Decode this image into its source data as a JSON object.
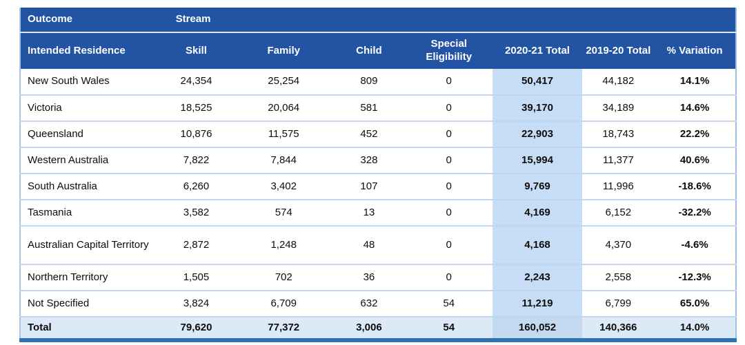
{
  "table": {
    "title_semantics": "Migration Program outcome by stream and intended residence",
    "header_top": {
      "outcome_label": "Outcome",
      "stream_label": "Stream"
    },
    "columns": {
      "residence": "Intended Residence",
      "skill": "Skill",
      "family": "Family",
      "child": "Child",
      "special": "Special Eligibility",
      "total_2021": "2020-21 Total",
      "total_1920": "2019-20 Total",
      "variation": "% Variation"
    },
    "rows": [
      {
        "residence": "New South Wales",
        "skill": "24,354",
        "family": "25,254",
        "child": "809",
        "special": "0",
        "total_2021": "50,417",
        "total_1920": "44,182",
        "variation": "14.1%"
      },
      {
        "residence": "Victoria",
        "skill": "18,525",
        "family": "20,064",
        "child": "581",
        "special": "0",
        "total_2021": "39,170",
        "total_1920": "34,189",
        "variation": "14.6%"
      },
      {
        "residence": "Queensland",
        "skill": "10,876",
        "family": "11,575",
        "child": "452",
        "special": "0",
        "total_2021": "22,903",
        "total_1920": "18,743",
        "variation": "22.2%"
      },
      {
        "residence": "Western Australia",
        "skill": "7,822",
        "family": "7,844",
        "child": "328",
        "special": "0",
        "total_2021": "15,994",
        "total_1920": "11,377",
        "variation": "40.6%"
      },
      {
        "residence": "South Australia",
        "skill": "6,260",
        "family": "3,402",
        "child": "107",
        "special": "0",
        "total_2021": "9,769",
        "total_1920": "11,996",
        "variation": "-18.6%"
      },
      {
        "residence": "Tasmania",
        "skill": "3,582",
        "family": "574",
        "child": "13",
        "special": "0",
        "total_2021": "4,169",
        "total_1920": "6,152",
        "variation": "-32.2%"
      },
      {
        "residence": "Australian Capital Territory",
        "skill": "2,872",
        "family": "1,248",
        "child": "48",
        "special": "0",
        "total_2021": "4,168",
        "total_1920": "4,370",
        "variation": "-4.6%"
      },
      {
        "residence": "Northern Territory",
        "skill": "1,505",
        "family": "702",
        "child": "36",
        "special": "0",
        "total_2021": "2,243",
        "total_1920": "2,558",
        "variation": "-12.3%"
      },
      {
        "residence": "Not Specified",
        "skill": "3,824",
        "family": "6,709",
        "child": "632",
        "special": "54",
        "total_2021": "11,219",
        "total_1920": "6,799",
        "variation": "65.0%"
      }
    ],
    "total_row": {
      "residence": "Total",
      "skill": "79,620",
      "family": "77,372",
      "child": "3,006",
      "special": "54",
      "total_2021": "160,052",
      "total_1920": "140,366",
      "variation": "14.0%"
    },
    "colors": {
      "header_bg": "#2254a3",
      "header_text": "#ffffff",
      "highlight_column_bg": "#c7ddf5",
      "total_row_bg": "#dce9f6",
      "total_row_highlight_bg": "#c3d9f0",
      "row_separator": "#bdd7ee",
      "bottom_border": "#2e74b5"
    }
  }
}
